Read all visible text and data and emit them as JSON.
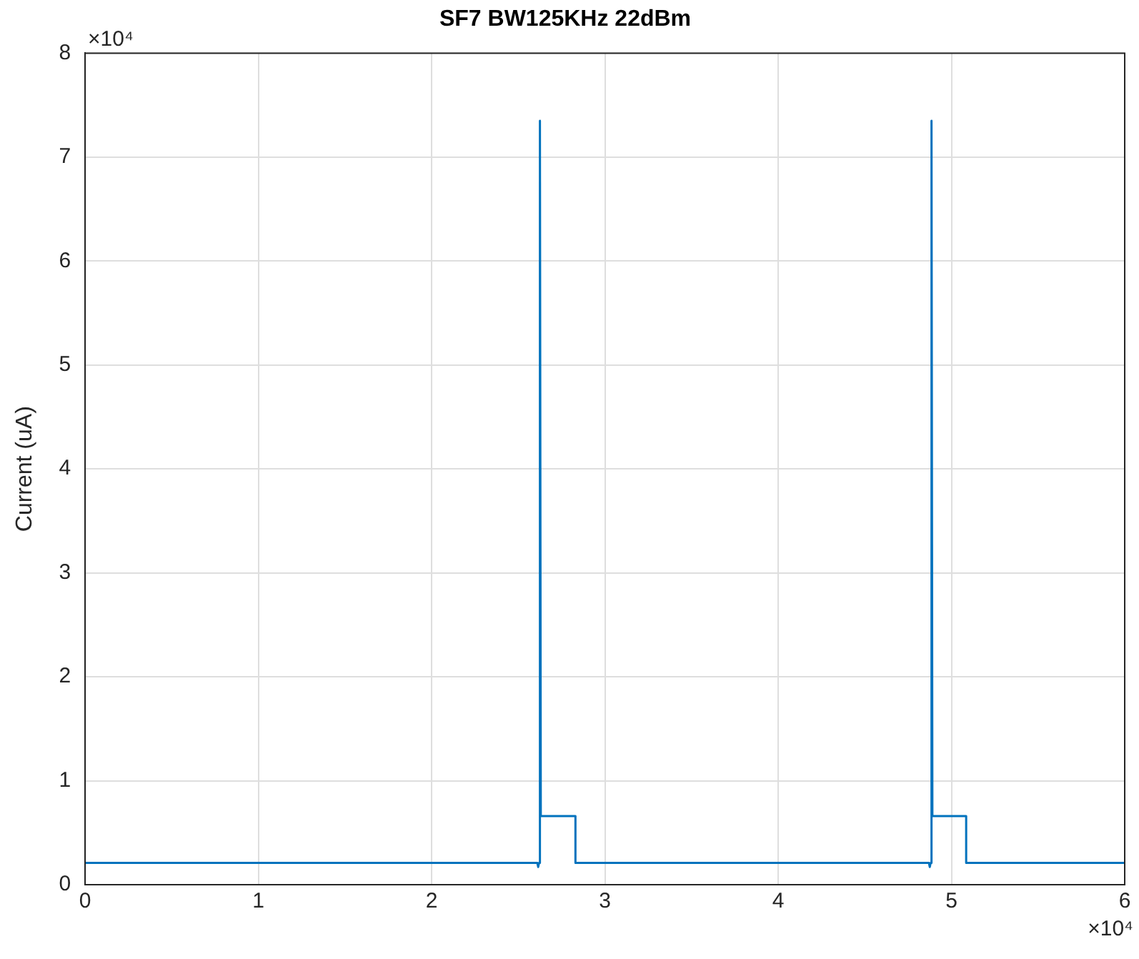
{
  "chart_data": {
    "type": "line",
    "title": "SF7 BW125KHz 22dBm",
    "ylabel": "Current (uA)",
    "x": [
      0,
      2.61,
      2.615,
      2.62,
      2.625,
      2.63,
      2.83,
      2.83,
      4.87,
      4.875,
      4.88,
      4.885,
      4.89,
      5.085,
      5.085,
      6
    ],
    "series": [
      {
        "color": "#0072bd",
        "values": [
          0.21,
          0.21,
          0.17,
          0.21,
          7.35,
          0.66,
          0.66,
          0.21,
          0.21,
          0.17,
          0.21,
          7.35,
          0.66,
          0.66,
          0.21,
          0.21
        ]
      }
    ],
    "xlim": [
      0,
      6
    ],
    "xticks": [
      0,
      1,
      2,
      3,
      4,
      5,
      6
    ],
    "ylim": [
      0,
      8
    ],
    "yticks": [
      0,
      1,
      2,
      3,
      4,
      5,
      6,
      7,
      8
    ],
    "annotations": [
      "×10⁴",
      "×10⁴"
    ],
    "grid": true,
    "legend": false,
    "marker": "none",
    "line_style": "solid"
  }
}
